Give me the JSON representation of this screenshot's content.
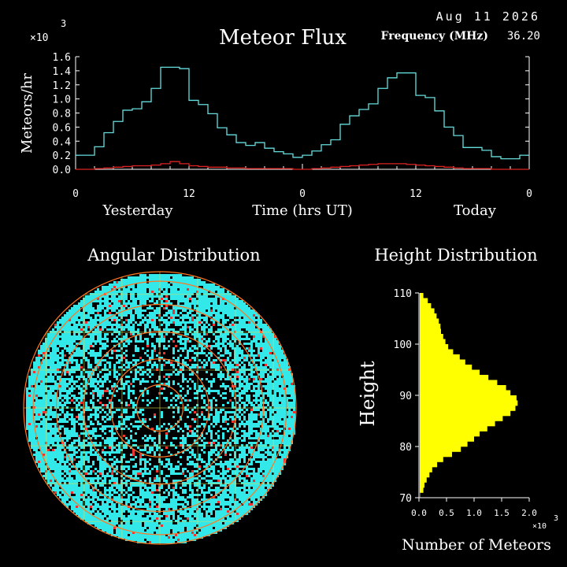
{
  "header": {
    "date": "Aug 11 2026",
    "frequency_label": "Frequency (MHz)",
    "frequency_value": "36.20"
  },
  "colors": {
    "background": "#000000",
    "flux_line": "#66dddd",
    "flux_secondary": "#dd2222",
    "cyan_dots": "#33e8e8",
    "red_dots": "#ee3333",
    "height_bar": "#ffff00",
    "rings": "#ff7722",
    "grid": "#dddd55"
  },
  "chart_data": [
    {
      "type": "line",
      "title": "Meteor Flux",
      "ylabel": "Meteors/hr",
      "y_multiplier": "×10",
      "y_multiplier_exp": "3",
      "xlabel": "Time (hrs UT)",
      "x_group_labels": [
        "Yesterday",
        "Today"
      ],
      "x_tick_labels": [
        "0",
        "12",
        "0",
        "12",
        "0"
      ],
      "y_tick_labels": [
        "0.0",
        "0.2",
        "0.4",
        "0.6",
        "0.8",
        "1.0",
        "1.2",
        "1.4",
        "1.6"
      ],
      "ylim": [
        0,
        1.6
      ],
      "xlim": [
        0,
        48
      ],
      "step": true,
      "series": [
        {
          "color": "#66dddd",
          "x": [
            0,
            1,
            2,
            3,
            4,
            5,
            6,
            7,
            8,
            9,
            10,
            11,
            12,
            13,
            14,
            15,
            16,
            17,
            18,
            19,
            20,
            21,
            22,
            23,
            24,
            25,
            26,
            27,
            28,
            29,
            30,
            31,
            32,
            33,
            34,
            35,
            36,
            37,
            38,
            39,
            40,
            41,
            42,
            43,
            44,
            45,
            46,
            47
          ],
          "values": [
            0.2,
            0.2,
            0.32,
            0.52,
            0.68,
            0.84,
            0.86,
            0.96,
            1.15,
            1.45,
            1.45,
            1.43,
            0.98,
            0.92,
            0.79,
            0.59,
            0.49,
            0.38,
            0.34,
            0.38,
            0.3,
            0.25,
            0.22,
            0.17,
            0.2,
            0.26,
            0.35,
            0.42,
            0.64,
            0.76,
            0.85,
            0.93,
            1.15,
            1.3,
            1.37,
            1.37,
            1.05,
            1.02,
            0.83,
            0.6,
            0.48,
            0.31,
            0.31,
            0.27,
            0.18,
            0.15,
            0.15,
            0.2
          ]
        },
        {
          "color": "#dd2222",
          "x": [
            0,
            1,
            2,
            3,
            4,
            5,
            6,
            7,
            8,
            9,
            10,
            11,
            12,
            13,
            14,
            15,
            16,
            17,
            18,
            19,
            20,
            21,
            22,
            23,
            24,
            25,
            26,
            27,
            28,
            29,
            30,
            31,
            32,
            33,
            34,
            35,
            36,
            37,
            38,
            39,
            40,
            41,
            42,
            43,
            44,
            45,
            46,
            47
          ],
          "values": [
            0.0,
            0.0,
            0.01,
            0.02,
            0.03,
            0.04,
            0.05,
            0.05,
            0.06,
            0.08,
            0.11,
            0.08,
            0.05,
            0.04,
            0.03,
            0.03,
            0.02,
            0.02,
            0.01,
            0.01,
            0.01,
            0.01,
            0.01,
            0.0,
            0.0,
            0.01,
            0.02,
            0.03,
            0.04,
            0.05,
            0.06,
            0.07,
            0.08,
            0.08,
            0.08,
            0.07,
            0.06,
            0.05,
            0.04,
            0.03,
            0.02,
            0.01,
            0.01,
            0.01,
            0.0,
            0.0,
            0.0,
            0.0
          ]
        }
      ]
    },
    {
      "type": "scatter",
      "title": "Angular Distribution",
      "note": "polar sky plot of meteor positions, zenith at center"
    },
    {
      "type": "bar",
      "orientation": "horizontal",
      "title": "Height Distribution",
      "ylabel": "Height",
      "xlabel": "Number of Meteors",
      "x_multiplier": "×10",
      "x_multiplier_exp": "3",
      "x_tick_labels": [
        "0.0",
        "0.5",
        "1.0",
        "1.5",
        "2.0"
      ],
      "y_tick_labels": [
        "70",
        "80",
        "90",
        "100",
        "110"
      ],
      "xlim": [
        0,
        2.0
      ],
      "ylim": [
        70,
        110
      ],
      "heights": [
        70,
        71,
        72,
        73,
        74,
        75,
        76,
        77,
        78,
        79,
        80,
        81,
        82,
        83,
        84,
        85,
        86,
        87,
        88,
        89,
        90,
        91,
        92,
        93,
        94,
        95,
        96,
        97,
        98,
        99,
        100,
        101,
        102,
        103,
        104,
        105,
        106,
        107,
        108,
        109
      ],
      "values": [
        0.02,
        0.08,
        0.1,
        0.14,
        0.19,
        0.24,
        0.33,
        0.44,
        0.6,
        0.76,
        0.88,
        1.0,
        1.1,
        1.24,
        1.38,
        1.52,
        1.66,
        1.75,
        1.79,
        1.77,
        1.66,
        1.58,
        1.42,
        1.26,
        1.1,
        0.96,
        0.84,
        0.74,
        0.62,
        0.53,
        0.48,
        0.44,
        0.4,
        0.39,
        0.36,
        0.32,
        0.28,
        0.22,
        0.16,
        0.08
      ]
    }
  ]
}
